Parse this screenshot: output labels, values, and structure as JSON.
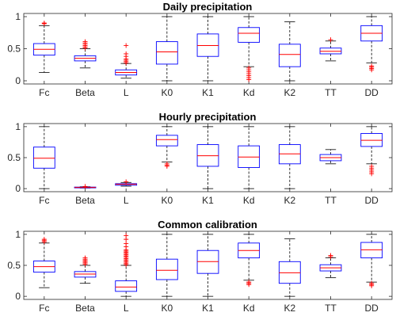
{
  "chart_data": [
    {
      "type": "boxplot",
      "title": "Daily precipitation",
      "categories": [
        "Fc",
        "Beta",
        "L",
        "K0",
        "K1",
        "Kd",
        "K2",
        "TT",
        "DD"
      ],
      "ylim": [
        0,
        1
      ],
      "yticks": [
        0,
        0.5,
        1
      ],
      "grid": false,
      "colors": {
        "box": "#0000ff",
        "median": "#ff0000",
        "whisker": "#000000",
        "outlier": "#ff0000"
      },
      "boxes": [
        {
          "min": 0.13,
          "q1": 0.4,
          "median": 0.49,
          "q3": 0.58,
          "max": 0.86,
          "outliers_high": [
            0.89,
            0.9
          ],
          "outliers_low": []
        },
        {
          "min": 0.2,
          "q1": 0.31,
          "median": 0.35,
          "q3": 0.39,
          "max": 0.5,
          "outliers_high": [
            0.51,
            0.53,
            0.55,
            0.57,
            0.59,
            0.61
          ],
          "outliers_low": []
        },
        {
          "min": 0.04,
          "q1": 0.09,
          "median": 0.13,
          "q3": 0.17,
          "max": 0.27,
          "outliers_high": [
            0.28,
            0.3,
            0.32,
            0.34,
            0.38,
            0.42,
            0.55
          ],
          "outliers_low": []
        },
        {
          "min": 0.0,
          "q1": 0.26,
          "median": 0.45,
          "q3": 0.61,
          "max": 1.0,
          "outliers_high": [],
          "outliers_low": []
        },
        {
          "min": 0.0,
          "q1": 0.38,
          "median": 0.55,
          "q3": 0.73,
          "max": 1.0,
          "outliers_high": [],
          "outliers_low": []
        },
        {
          "min": 0.22,
          "q1": 0.6,
          "median": 0.74,
          "q3": 0.83,
          "max": 1.0,
          "outliers_high": [],
          "outliers_low": [
            0.02,
            0.05,
            0.08,
            0.11,
            0.14,
            0.17,
            0.2
          ]
        },
        {
          "min": 0.0,
          "q1": 0.22,
          "median": 0.41,
          "q3": 0.57,
          "max": 0.92,
          "outliers_high": [],
          "outliers_low": []
        },
        {
          "min": 0.31,
          "q1": 0.42,
          "median": 0.46,
          "q3": 0.51,
          "max": 0.62,
          "outliers_high": [
            0.64
          ],
          "outliers_low": []
        },
        {
          "min": 0.28,
          "q1": 0.62,
          "median": 0.74,
          "q3": 0.86,
          "max": 1.0,
          "outliers_high": [],
          "outliers_low": [
            0.17,
            0.19,
            0.21,
            0.23
          ]
        }
      ]
    },
    {
      "type": "boxplot",
      "title": "Hourly precipitation",
      "categories": [
        "Fc",
        "Beta",
        "L",
        "K0",
        "K1",
        "Kd",
        "K2",
        "TT",
        "DD"
      ],
      "ylim": [
        0,
        1
      ],
      "yticks": [
        0,
        0.5,
        1
      ],
      "grid": false,
      "colors": {
        "box": "#0000ff",
        "median": "#ff0000",
        "whisker": "#000000",
        "outlier": "#ff0000"
      },
      "boxes": [
        {
          "min": 0.0,
          "q1": 0.33,
          "median": 0.49,
          "q3": 0.67,
          "max": 1.0,
          "outliers_high": [],
          "outliers_low": []
        },
        {
          "min": 0.01,
          "q1": 0.015,
          "median": 0.02,
          "q3": 0.025,
          "max": 0.03,
          "outliers_high": [
            0.035
          ],
          "outliers_low": []
        },
        {
          "min": 0.04,
          "q1": 0.055,
          "median": 0.07,
          "q3": 0.08,
          "max": 0.1,
          "outliers_high": [
            0.11
          ],
          "outliers_low": []
        },
        {
          "min": 0.43,
          "q1": 0.69,
          "median": 0.79,
          "q3": 0.86,
          "max": 1.0,
          "outliers_high": [],
          "outliers_low": [
            0.36,
            0.38,
            0.4
          ]
        },
        {
          "min": 0.0,
          "q1": 0.36,
          "median": 0.53,
          "q3": 0.71,
          "max": 1.0,
          "outliers_high": [],
          "outliers_low": []
        },
        {
          "min": 0.0,
          "q1": 0.34,
          "median": 0.51,
          "q3": 0.69,
          "max": 1.0,
          "outliers_high": [],
          "outliers_low": []
        },
        {
          "min": 0.0,
          "q1": 0.4,
          "median": 0.56,
          "q3": 0.71,
          "max": 1.0,
          "outliers_high": [],
          "outliers_low": []
        },
        {
          "min": 0.4,
          "q1": 0.45,
          "median": 0.5,
          "q3": 0.55,
          "max": 0.63,
          "outliers_high": [],
          "outliers_low": []
        },
        {
          "min": 0.4,
          "q1": 0.68,
          "median": 0.78,
          "q3": 0.89,
          "max": 1.0,
          "outliers_high": [],
          "outliers_low": [
            0.24,
            0.27,
            0.3,
            0.33,
            0.36
          ]
        }
      ]
    },
    {
      "type": "boxplot",
      "title": "Common calibration",
      "categories": [
        "Fc",
        "Beta",
        "L",
        "K0",
        "K1",
        "Kd",
        "K2",
        "TT",
        "DD"
      ],
      "ylim": [
        0,
        1
      ],
      "yticks": [
        0,
        0.5,
        1
      ],
      "grid": false,
      "colors": {
        "box": "#0000ff",
        "median": "#ff0000",
        "whisker": "#000000",
        "outlier": "#ff0000"
      },
      "boxes": [
        {
          "min": 0.14,
          "q1": 0.39,
          "median": 0.48,
          "q3": 0.57,
          "max": 0.86,
          "outliers_high": [
            0.88,
            0.9,
            0.92
          ],
          "outliers_low": []
        },
        {
          "min": 0.21,
          "q1": 0.31,
          "median": 0.36,
          "q3": 0.4,
          "max": 0.5,
          "outliers_high": [
            0.52,
            0.54,
            0.56,
            0.58,
            0.6,
            0.62
          ],
          "outliers_low": []
        },
        {
          "min": 0.0,
          "q1": 0.08,
          "median": 0.15,
          "q3": 0.25,
          "max": 0.5,
          "outliers_high": [
            0.51,
            0.53,
            0.55,
            0.57,
            0.59,
            0.61,
            0.63,
            0.65,
            0.67,
            0.69,
            0.71,
            0.73,
            0.75,
            0.8,
            0.85,
            0.92,
            0.98
          ],
          "outliers_low": []
        },
        {
          "min": 0.0,
          "q1": 0.27,
          "median": 0.42,
          "q3": 0.6,
          "max": 1.0,
          "outliers_high": [],
          "outliers_low": []
        },
        {
          "min": 0.0,
          "q1": 0.37,
          "median": 0.56,
          "q3": 0.74,
          "max": 1.0,
          "outliers_high": [],
          "outliers_low": []
        },
        {
          "min": 0.26,
          "q1": 0.62,
          "median": 0.74,
          "q3": 0.86,
          "max": 1.0,
          "outliers_high": [],
          "outliers_low": [
            0.19,
            0.21,
            0.23
          ]
        },
        {
          "min": 0.0,
          "q1": 0.21,
          "median": 0.38,
          "q3": 0.56,
          "max": 0.93,
          "outliers_high": [],
          "outliers_low": []
        },
        {
          "min": 0.3,
          "q1": 0.41,
          "median": 0.46,
          "q3": 0.51,
          "max": 0.62,
          "outliers_high": [
            0.64,
            0.66
          ],
          "outliers_low": []
        },
        {
          "min": 0.23,
          "q1": 0.62,
          "median": 0.75,
          "q3": 0.87,
          "max": 1.0,
          "outliers_high": [],
          "outliers_low": [
            0.17,
            0.19,
            0.21
          ]
        }
      ]
    }
  ]
}
